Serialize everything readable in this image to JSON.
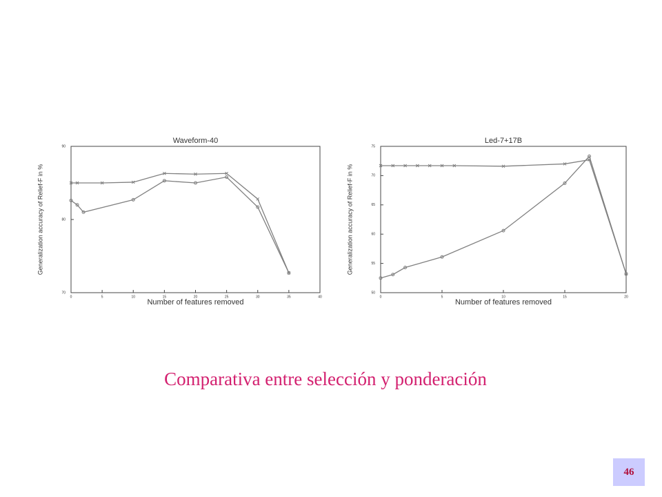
{
  "chart_data": [
    {
      "type": "line",
      "title": "Waveform-40",
      "xlabel": "Number of features removed",
      "ylabel": "Generalization accuracy of Relief-F in %",
      "xlim": [
        0,
        40
      ],
      "xticks": [
        0,
        5,
        10,
        15,
        20,
        25,
        30,
        35,
        40
      ],
      "ylim": [
        70,
        90
      ],
      "yticks": [
        70,
        80,
        90
      ],
      "series": [
        {
          "color": "#808080",
          "marker": "x",
          "x": [
            0,
            1,
            5,
            10,
            15,
            20,
            25,
            30,
            35
          ],
          "values": [
            85,
            85,
            85,
            85.1,
            86.3,
            86.2,
            86.3,
            82.8,
            72.7
          ]
        },
        {
          "color": "#808080",
          "marker": "o",
          "x": [
            0,
            1,
            2,
            10,
            15,
            20,
            25,
            30,
            35
          ],
          "values": [
            82.6,
            82,
            81,
            82.7,
            85.3,
            85,
            85.8,
            81.7,
            72.7
          ]
        }
      ]
    },
    {
      "type": "line",
      "title": "Led-7+17B",
      "xlabel": "Number of features removed",
      "ylabel": "Generalization accuracy of Relief-F in %",
      "xlim": [
        0,
        20
      ],
      "xticks": [
        0,
        5,
        10,
        15,
        20
      ],
      "ylim": [
        50,
        75
      ],
      "yticks": [
        50,
        55,
        60,
        65,
        70,
        75
      ],
      "series": [
        {
          "color": "#808080",
          "marker": "x",
          "x": [
            0,
            1,
            2,
            3,
            4,
            5,
            6,
            10,
            15,
            17,
            20
          ],
          "values": [
            71.7,
            71.7,
            71.7,
            71.7,
            71.7,
            71.7,
            71.7,
            71.6,
            72,
            72.7,
            53.2
          ]
        },
        {
          "color": "#808080",
          "marker": "o",
          "x": [
            0,
            1,
            2,
            5,
            10,
            15,
            17,
            20
          ],
          "values": [
            52.5,
            53.1,
            54.3,
            56.1,
            60.6,
            68.7,
            73.3,
            53.2
          ]
        }
      ]
    }
  ],
  "caption": "Comparativa entre selección y ponderación",
  "page_number": "46"
}
